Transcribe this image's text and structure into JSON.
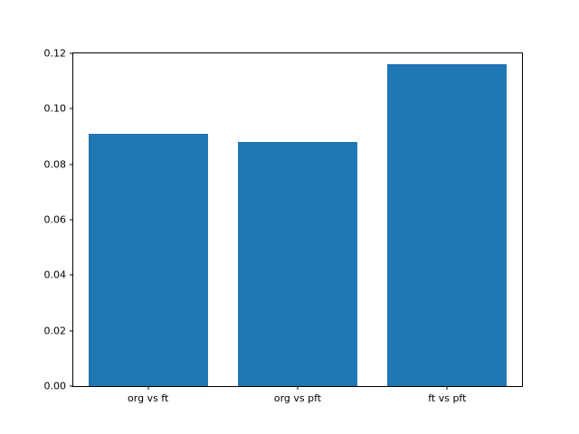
{
  "chart_data": {
    "type": "bar",
    "title": "",
    "xlabel": "",
    "ylabel": "",
    "categories": [
      "org vs ft",
      "org vs pft",
      "ft vs pft"
    ],
    "values": [
      0.091,
      0.088,
      0.116
    ],
    "ylim": [
      0.0,
      0.12
    ],
    "yticks": [
      0.0,
      0.02,
      0.04,
      0.06,
      0.08,
      0.1,
      0.12
    ],
    "ytick_format_decimals": 2,
    "bar_color": "#1f77b4",
    "bar_width_fraction": 0.8,
    "grid": false,
    "legend": null
  }
}
